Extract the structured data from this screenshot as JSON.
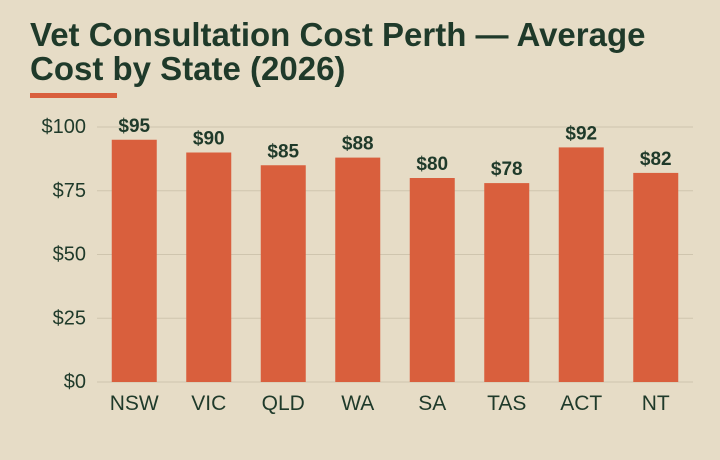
{
  "title": "Vet Consultation Cost Perth — Average Cost by State (2026)",
  "colors": {
    "background": "#e6dcc6",
    "bar": "#d95f3d",
    "text": "#1f3a2a",
    "grid": "#cfc5ae",
    "accent_underline": "#d95f3d"
  },
  "chart_data": {
    "type": "bar",
    "title": "Vet Consultation Cost Perth — Average Cost by State (2026)",
    "xlabel": "",
    "ylabel": "",
    "categories": [
      "NSW",
      "VIC",
      "QLD",
      "WA",
      "SA",
      "TAS",
      "ACT",
      "NT"
    ],
    "values": [
      95,
      90,
      85,
      88,
      80,
      78,
      92,
      82
    ],
    "data_labels": [
      "$95",
      "$90",
      "$85",
      "$88",
      "$80",
      "$78",
      "$92",
      "$82"
    ],
    "ylim": [
      0,
      100
    ],
    "yticks": [
      0,
      25,
      50,
      75,
      100
    ],
    "ytick_labels": [
      "$0",
      "$25",
      "$50",
      "$75",
      "$100"
    ],
    "grid": true,
    "legend": "none"
  }
}
